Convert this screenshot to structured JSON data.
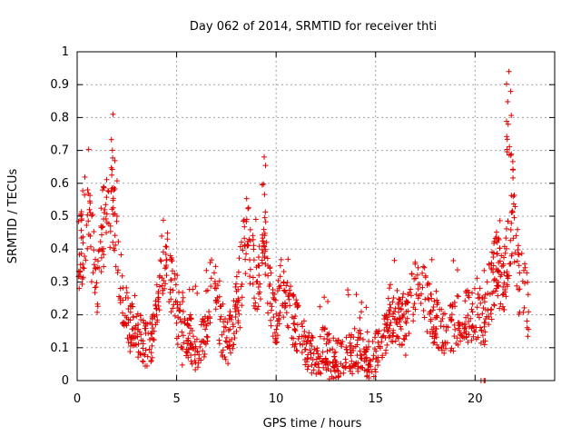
{
  "chart_data": {
    "type": "scatter",
    "title": "Day 062 of 2014, SRMTID for receiver thti",
    "xlabel": "GPS time / hours",
    "ylabel": "SRMTID / TECUs",
    "xlim": [
      0,
      24
    ],
    "ylim": [
      0,
      1
    ],
    "xticks": [
      0,
      5,
      10,
      15,
      20
    ],
    "xtick_labels": [
      "0",
      "5",
      "10",
      "15",
      "20"
    ],
    "yticks": [
      0,
      0.1,
      0.2,
      0.3,
      0.4,
      0.5,
      0.6,
      0.7,
      0.8,
      0.9,
      1
    ],
    "ytick_labels": [
      "0",
      "0.1",
      "0.2",
      "0.3",
      "0.4",
      "0.5",
      "0.6",
      "0.7",
      "0.8",
      "0.9",
      "1"
    ],
    "grid": true,
    "marker": "+",
    "color": "#e00000",
    "envelope_hours": [
      0,
      0.3,
      0.5,
      0.8,
      1.0,
      1.2,
      1.5,
      1.8,
      2.0,
      2.3,
      2.6,
      3.0,
      3.3,
      3.6,
      3.9,
      4.2,
      4.4,
      4.7,
      5.0,
      5.3,
      5.6,
      5.9,
      6.2,
      6.5,
      6.8,
      7.0,
      7.3,
      7.6,
      7.9,
      8.2,
      8.5,
      8.8,
      9.1,
      9.4,
      9.7,
      10.0,
      10.3,
      10.6,
      10.9,
      11.2,
      11.5,
      11.8,
      12.1,
      12.4,
      12.7,
      13.0,
      13.3,
      13.6,
      13.9,
      14.2,
      14.5,
      14.8,
      15.1,
      15.4,
      15.7,
      16.0,
      16.3,
      16.6,
      16.9,
      17.2,
      17.5,
      17.8,
      18.1,
      18.4,
      18.7,
      19.0,
      19.3,
      19.6,
      19.9,
      20.2,
      20.5,
      20.8,
      21.1,
      21.4,
      21.7,
      21.9,
      22.2,
      22.5,
      22.7
    ],
    "envelope_srmtid_center": [
      0.36,
      0.42,
      0.5,
      0.38,
      0.25,
      0.45,
      0.5,
      0.52,
      0.4,
      0.25,
      0.17,
      0.14,
      0.12,
      0.1,
      0.15,
      0.35,
      0.4,
      0.3,
      0.2,
      0.17,
      0.14,
      0.1,
      0.1,
      0.15,
      0.35,
      0.25,
      0.14,
      0.12,
      0.18,
      0.3,
      0.45,
      0.35,
      0.3,
      0.4,
      0.25,
      0.18,
      0.3,
      0.22,
      0.18,
      0.15,
      0.1,
      0.08,
      0.07,
      0.1,
      0.08,
      0.06,
      0.08,
      0.1,
      0.08,
      0.1,
      0.07,
      0.06,
      0.1,
      0.12,
      0.2,
      0.2,
      0.18,
      0.2,
      0.25,
      0.3,
      0.25,
      0.2,
      0.17,
      0.15,
      0.15,
      0.17,
      0.2,
      0.2,
      0.2,
      0.2,
      0.18,
      0.3,
      0.35,
      0.28,
      0.4,
      0.55,
      0.3,
      0.3,
      0.2
    ],
    "peaks": [
      {
        "x": 1.8,
        "y": 0.81
      },
      {
        "x": 9.4,
        "y": 0.68
      },
      {
        "x": 21.7,
        "y": 0.94
      }
    ]
  }
}
